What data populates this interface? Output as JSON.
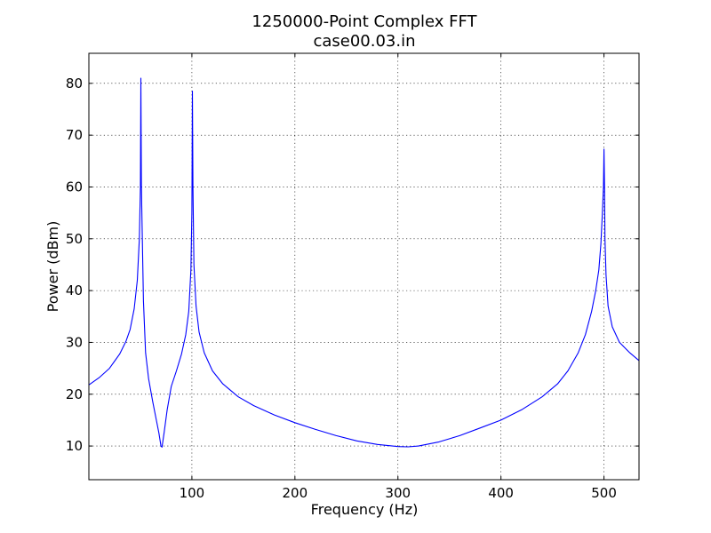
{
  "chart_data": {
    "type": "line",
    "title": "1250000-Point Complex FFT",
    "subtitle": "case00.03.in",
    "xlabel": "Frequency (Hz)",
    "ylabel": "Power (dBm)",
    "xlim": [
      0,
      534
    ],
    "ylim": [
      3.5,
      85.8
    ],
    "xticks": [
      100,
      200,
      300,
      400,
      500
    ],
    "yticks": [
      10,
      20,
      30,
      40,
      50,
      60,
      70,
      80
    ],
    "grid": true,
    "grid_style": "dotted",
    "line_color": "#0000ff",
    "series": [
      {
        "x": [
          0,
          10,
          20,
          30,
          36,
          40,
          44,
          47,
          49,
          50,
          50.5,
          51,
          53,
          55,
          58,
          62,
          66,
          68,
          70,
          71,
          73,
          76,
          80,
          85,
          90,
          94,
          97,
          99,
          100,
          100.5,
          101,
          102,
          104,
          107,
          112,
          120,
          130,
          145,
          160,
          180,
          200,
          220,
          240,
          260,
          280,
          300,
          310,
          320,
          340,
          360,
          380,
          400,
          420,
          440,
          455,
          465,
          475,
          482,
          488,
          492,
          495,
          497,
          498.5,
          499.5,
          500,
          500.5,
          501,
          502,
          504,
          508,
          515,
          525,
          534
        ],
        "y": [
          21.8,
          23.2,
          25.0,
          27.8,
          30.2,
          32.5,
          36.5,
          42,
          50,
          60,
          81,
          60,
          38,
          28,
          23,
          18.5,
          14.5,
          12.5,
          10,
          9.8,
          12.5,
          17,
          21.5,
          24.5,
          27.8,
          31.5,
          36,
          44,
          55,
          78.5,
          60,
          45,
          37,
          32,
          28,
          24.5,
          22,
          19.5,
          17.8,
          16.0,
          14.5,
          13.2,
          12.0,
          11.0,
          10.3,
          9.9,
          9.85,
          10.0,
          10.8,
          12.0,
          13.5,
          15.0,
          17.0,
          19.5,
          22.0,
          24.5,
          28.0,
          31.5,
          36.0,
          40.0,
          44.0,
          49.0,
          55.0,
          60.0,
          67.3,
          60.0,
          50.0,
          43.0,
          37.0,
          33.0,
          30.0,
          28.0,
          26.5
        ]
      }
    ]
  }
}
